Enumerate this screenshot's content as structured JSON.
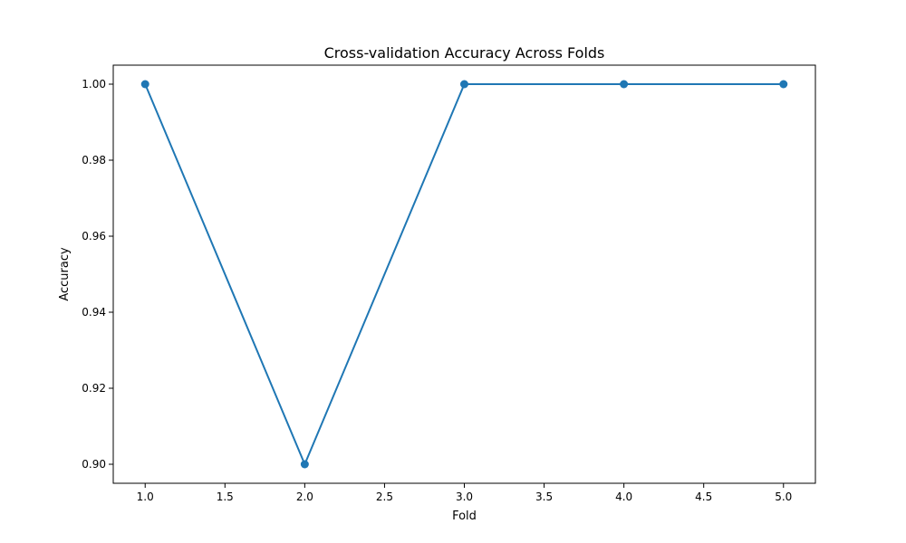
{
  "chart_data": {
    "type": "line",
    "title": "Cross-validation Accuracy Across Folds",
    "xlabel": "Fold",
    "ylabel": "Accuracy",
    "x": [
      1,
      2,
      3,
      4,
      5
    ],
    "series": [
      {
        "values": [
          1.0,
          0.9,
          1.0,
          1.0,
          1.0
        ],
        "color": "#1f77b4",
        "marker": "circle"
      }
    ],
    "xlim": [
      0.8,
      5.2
    ],
    "ylim": [
      0.895,
      1.005
    ],
    "xticks": [
      1.0,
      1.5,
      2.0,
      2.5,
      3.0,
      3.5,
      4.0,
      4.5,
      5.0
    ],
    "xtick_labels": [
      "1.0",
      "1.5",
      "2.0",
      "2.5",
      "3.0",
      "3.5",
      "4.0",
      "4.5",
      "5.0"
    ],
    "yticks": [
      0.9,
      0.92,
      0.94,
      0.96,
      0.98,
      1.0
    ],
    "ytick_labels": [
      "0.90",
      "0.92",
      "0.94",
      "0.96",
      "0.98",
      "1.00"
    ],
    "grid": false,
    "legend": "none"
  }
}
